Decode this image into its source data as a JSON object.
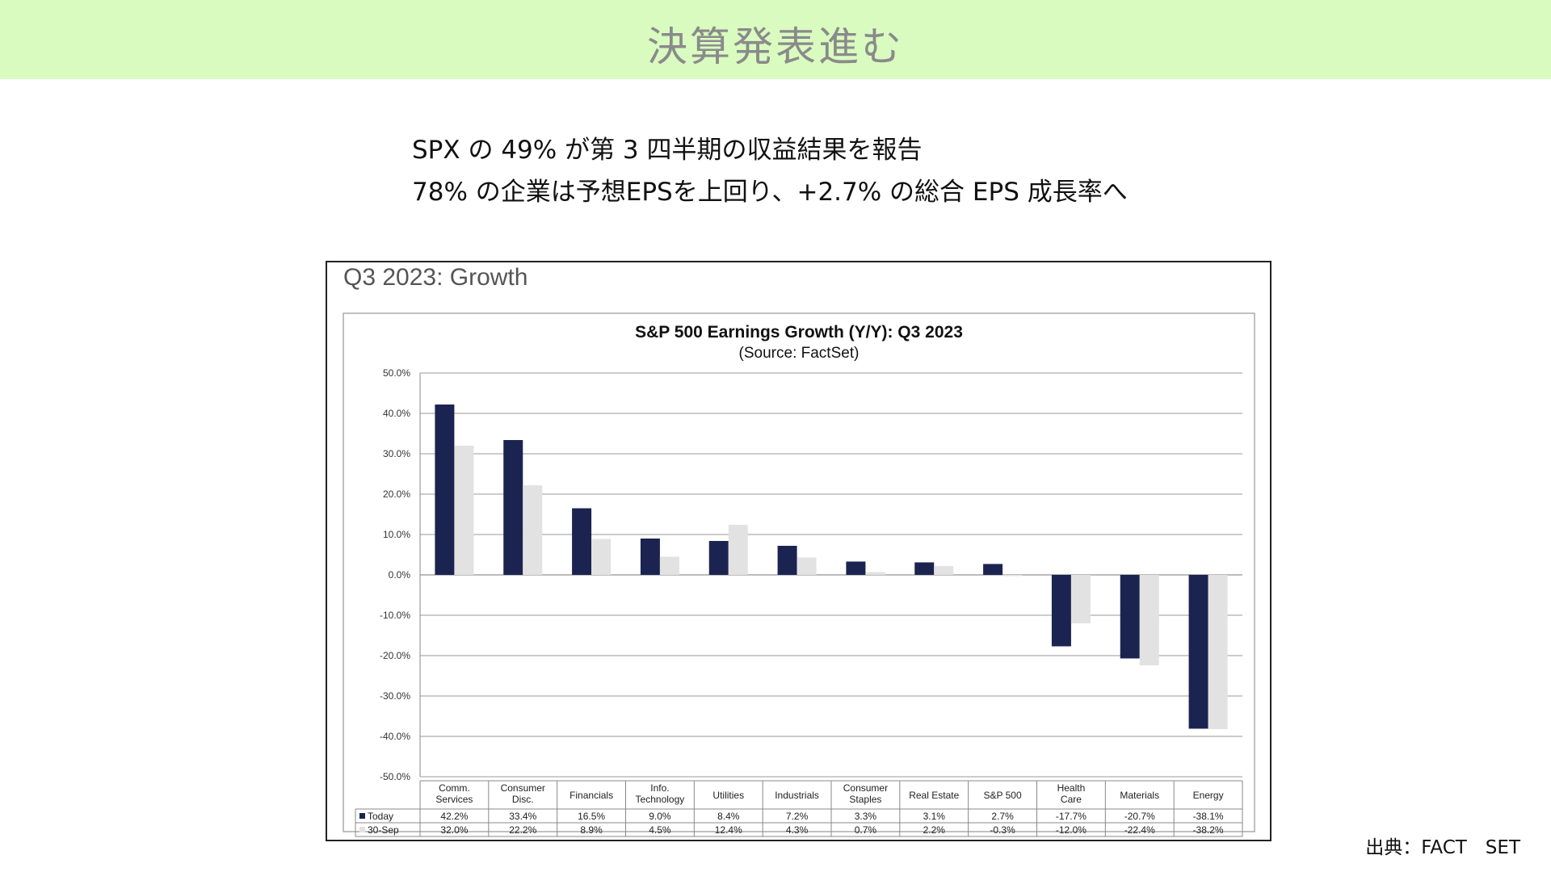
{
  "banner": {
    "title": "決算発表進む"
  },
  "intro": {
    "line1": "SPX の 49% が第 3 四半期の収益結果を報告",
    "line2": "78% の企業は予想EPSを上回り、+2.7% の総合 EPS 成長率へ"
  },
  "figure": {
    "heading": "Q3 2023: Growth"
  },
  "source_note": "出典：FACT　SET",
  "colors": {
    "today": "#1b2450",
    "sep30": "#e2e2e2",
    "banner": "#d9fbc0"
  },
  "chart_data": {
    "type": "bar",
    "title": "S&P 500 Earnings Growth (Y/Y): Q3 2023",
    "subtitle": "(Source: FactSet)",
    "ylim": [
      -50,
      50
    ],
    "yticks": [
      50,
      40,
      30,
      20,
      10,
      0,
      -10,
      -20,
      -30,
      -40,
      -50
    ],
    "ytick_labels": [
      "50.0%",
      "40.0%",
      "30.0%",
      "20.0%",
      "10.0%",
      "0.0%",
      "-10.0%",
      "-20.0%",
      "-30.0%",
      "-40.0%",
      "-50.0%"
    ],
    "grid": true,
    "legend_position": "data table below chart",
    "categories": [
      [
        "Comm.",
        "Services"
      ],
      [
        "Consumer",
        "Disc."
      ],
      [
        "Financials"
      ],
      [
        "Info.",
        "Technology"
      ],
      [
        "Utilities"
      ],
      [
        "Industrials"
      ],
      [
        "Consumer",
        "Staples"
      ],
      [
        "Real Estate"
      ],
      [
        "S&P 500"
      ],
      [
        "Health",
        "Care"
      ],
      [
        "Materials"
      ],
      [
        "Energy"
      ]
    ],
    "series": [
      {
        "name": "Today",
        "values": [
          42.2,
          33.4,
          16.5,
          9.0,
          8.4,
          7.2,
          3.3,
          3.1,
          2.7,
          -17.7,
          -20.7,
          -38.1
        ],
        "labels": [
          "42.2%",
          "33.4%",
          "16.5%",
          "9.0%",
          "8.4%",
          "7.2%",
          "3.3%",
          "3.1%",
          "2.7%",
          "-17.7%",
          "-20.7%",
          "-38.1%"
        ]
      },
      {
        "name": "30-Sep",
        "values": [
          32.0,
          22.2,
          8.9,
          4.5,
          12.4,
          4.3,
          0.7,
          2.2,
          -0.3,
          -12.0,
          -22.4,
          -38.2
        ],
        "labels": [
          "32.0%",
          "22.2%",
          "8.9%",
          "4.5%",
          "12.4%",
          "4.3%",
          "0.7%",
          "2.2%",
          "-0.3%",
          "-12.0%",
          "-22.4%",
          "-38.2%"
        ]
      }
    ]
  }
}
